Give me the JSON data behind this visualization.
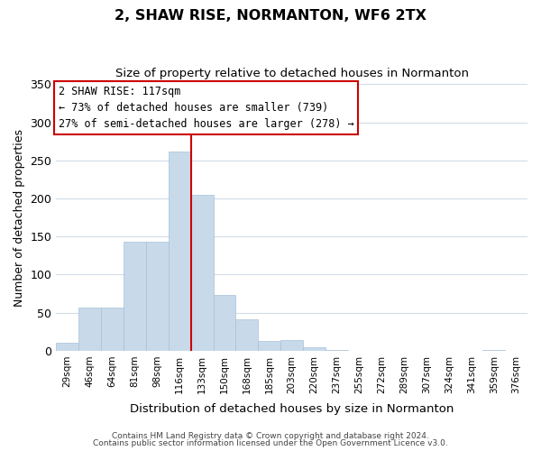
{
  "title": "2, SHAW RISE, NORMANTON, WF6 2TX",
  "subtitle": "Size of property relative to detached houses in Normanton",
  "xlabel": "Distribution of detached houses by size in Normanton",
  "ylabel": "Number of detached properties",
  "bar_color": "#c8daea",
  "bar_edge_color": "#a8c0d8",
  "bin_labels": [
    "29sqm",
    "46sqm",
    "64sqm",
    "81sqm",
    "98sqm",
    "116sqm",
    "133sqm",
    "150sqm",
    "168sqm",
    "185sqm",
    "203sqm",
    "220sqm",
    "237sqm",
    "255sqm",
    "272sqm",
    "289sqm",
    "307sqm",
    "324sqm",
    "341sqm",
    "359sqm",
    "376sqm"
  ],
  "bar_heights": [
    10,
    57,
    57,
    143,
    143,
    262,
    205,
    73,
    41,
    13,
    14,
    5,
    1,
    0,
    0,
    0,
    0,
    0,
    0,
    1,
    0
  ],
  "vline_x_index": 5,
  "vline_color": "#cc0000",
  "ylim": [
    0,
    350
  ],
  "yticks": [
    0,
    50,
    100,
    150,
    200,
    250,
    300,
    350
  ],
  "annotation_line1": "2 SHAW RISE: 117sqm",
  "annotation_line2": "← 73% of detached houses are smaller (739)",
  "annotation_line3": "27% of semi-detached houses are larger (278) →",
  "annotation_box_color": "#ffffff",
  "annotation_box_edge": "#cc0000",
  "footer_line1": "Contains HM Land Registry data © Crown copyright and database right 2024.",
  "footer_line2": "Contains public sector information licensed under the Open Government Licence v3.0.",
  "background_color": "#ffffff",
  "grid_color": "#d0dce8"
}
